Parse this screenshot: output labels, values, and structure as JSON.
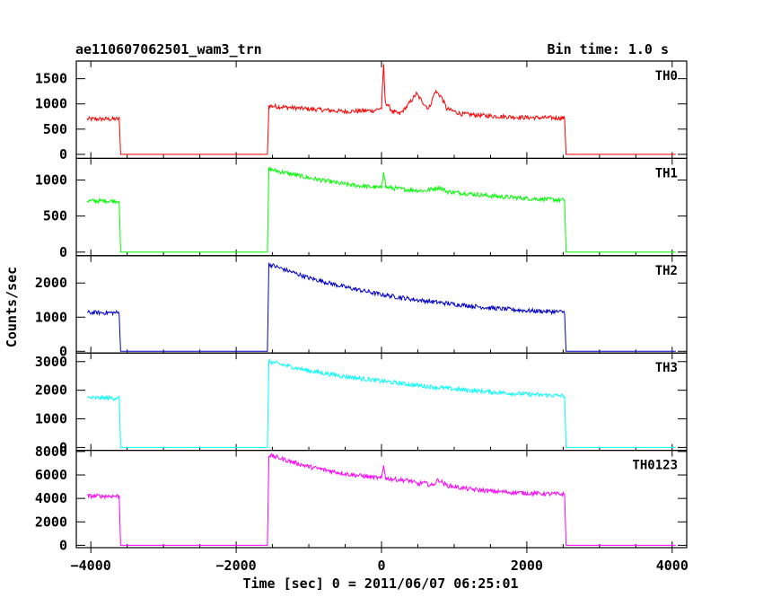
{
  "chart_data": {
    "type": "line",
    "title": "ae110607062501_wam3_trn",
    "subtitle": "Bin time: 1.0 s",
    "xlabel": "Time [sec] 0 = 2011/06/07 06:25:01",
    "ylabel": "Counts/sec",
    "xlim": [
      -4200,
      4200
    ],
    "x_ticks": [
      -4000,
      -2000,
      0,
      2000,
      4000
    ],
    "x_tick_labels": [
      "−4000",
      "−2000",
      "0",
      "2000",
      "4000"
    ],
    "grid": false,
    "panels": [
      {
        "name": "TH0",
        "color": "#ff0000",
        "ylim": [
          -80,
          1850
        ],
        "y_ticks": [
          0,
          500,
          1000,
          1500
        ],
        "y_tick_labels": [
          "0",
          "500",
          "1000",
          "1500"
        ],
        "points": [
          [
            -4050,
            700
          ],
          [
            -3610,
            700
          ],
          [
            -3590,
            0
          ],
          [
            -1570,
            0
          ],
          [
            -1550,
            960
          ],
          [
            -1000,
            900
          ],
          [
            -500,
            850
          ],
          [
            -100,
            870
          ],
          [
            0,
            920
          ],
          [
            30,
            1780
          ],
          [
            50,
            1050
          ],
          [
            150,
            850
          ],
          [
            250,
            800
          ],
          [
            350,
            950
          ],
          [
            480,
            1200
          ],
          [
            560,
            1050
          ],
          [
            650,
            900
          ],
          [
            740,
            1250
          ],
          [
            820,
            1150
          ],
          [
            900,
            900
          ],
          [
            1100,
            800
          ],
          [
            1500,
            760
          ],
          [
            2000,
            730
          ],
          [
            2500,
            720
          ],
          [
            2520,
            720
          ],
          [
            2540,
            0
          ],
          [
            4050,
            0
          ]
        ]
      },
      {
        "name": "TH1",
        "color": "#00ff00",
        "ylim": [
          -50,
          1300
        ],
        "y_ticks": [
          0,
          500,
          1000
        ],
        "y_tick_labels": [
          "0",
          "500",
          "1000"
        ],
        "points": [
          [
            -4050,
            710
          ],
          [
            -3610,
            710
          ],
          [
            -3590,
            0
          ],
          [
            -1570,
            0
          ],
          [
            -1550,
            1150
          ],
          [
            -1000,
            1030
          ],
          [
            -500,
            940
          ],
          [
            0,
            890
          ],
          [
            30,
            1130
          ],
          [
            60,
            900
          ],
          [
            300,
            870
          ],
          [
            600,
            850
          ],
          [
            800,
            900
          ],
          [
            900,
            840
          ],
          [
            1500,
            780
          ],
          [
            2000,
            745
          ],
          [
            2520,
            720
          ],
          [
            2540,
            0
          ],
          [
            4050,
            0
          ]
        ]
      },
      {
        "name": "TH2",
        "color": "#0000cc",
        "ylim": [
          -50,
          2800
        ],
        "y_ticks": [
          0,
          1000,
          2000
        ],
        "y_tick_labels": [
          "0",
          "1000",
          "2000"
        ],
        "points": [
          [
            -4050,
            1130
          ],
          [
            -3610,
            1130
          ],
          [
            -3590,
            0
          ],
          [
            -1570,
            0
          ],
          [
            -1550,
            2550
          ],
          [
            -1000,
            2150
          ],
          [
            -500,
            1880
          ],
          [
            0,
            1660
          ],
          [
            500,
            1500
          ],
          [
            1000,
            1380
          ],
          [
            1500,
            1270
          ],
          [
            2000,
            1190
          ],
          [
            2520,
            1150
          ],
          [
            2540,
            0
          ],
          [
            4050,
            0
          ]
        ]
      },
      {
        "name": "TH3",
        "color": "#00ffff",
        "ylim": [
          -100,
          3300
        ],
        "y_ticks": [
          0,
          1000,
          2000,
          3000
        ],
        "y_tick_labels": [
          "0",
          "1000",
          "2000",
          "3000"
        ],
        "points": [
          [
            -4050,
            1730
          ],
          [
            -3610,
            1730
          ],
          [
            -3590,
            0
          ],
          [
            -1570,
            0
          ],
          [
            -1550,
            3000
          ],
          [
            -1000,
            2680
          ],
          [
            -500,
            2480
          ],
          [
            0,
            2320
          ],
          [
            500,
            2170
          ],
          [
            1000,
            2040
          ],
          [
            1500,
            1940
          ],
          [
            2000,
            1860
          ],
          [
            2520,
            1800
          ],
          [
            2540,
            0
          ],
          [
            4050,
            0
          ]
        ]
      },
      {
        "name": "TH0123",
        "color": "#ff00ff",
        "ylim": [
          -200,
          8100
        ],
        "y_ticks": [
          0,
          2000,
          4000,
          6000,
          8000
        ],
        "y_tick_labels": [
          "0",
          "2000",
          "4000",
          "6000",
          "8000"
        ],
        "points": [
          [
            -4050,
            4200
          ],
          [
            -3610,
            4200
          ],
          [
            -3590,
            0
          ],
          [
            -1570,
            0
          ],
          [
            -1550,
            7700
          ],
          [
            -1000,
            6700
          ],
          [
            -500,
            6100
          ],
          [
            0,
            5700
          ],
          [
            30,
            6800
          ],
          [
            60,
            5700
          ],
          [
            400,
            5500
          ],
          [
            500,
            5200
          ],
          [
            560,
            5350
          ],
          [
            700,
            5100
          ],
          [
            780,
            5600
          ],
          [
            900,
            5100
          ],
          [
            1200,
            4800
          ],
          [
            1500,
            4620
          ],
          [
            2000,
            4450
          ],
          [
            2520,
            4350
          ],
          [
            2540,
            0
          ],
          [
            4050,
            0
          ]
        ]
      }
    ]
  }
}
